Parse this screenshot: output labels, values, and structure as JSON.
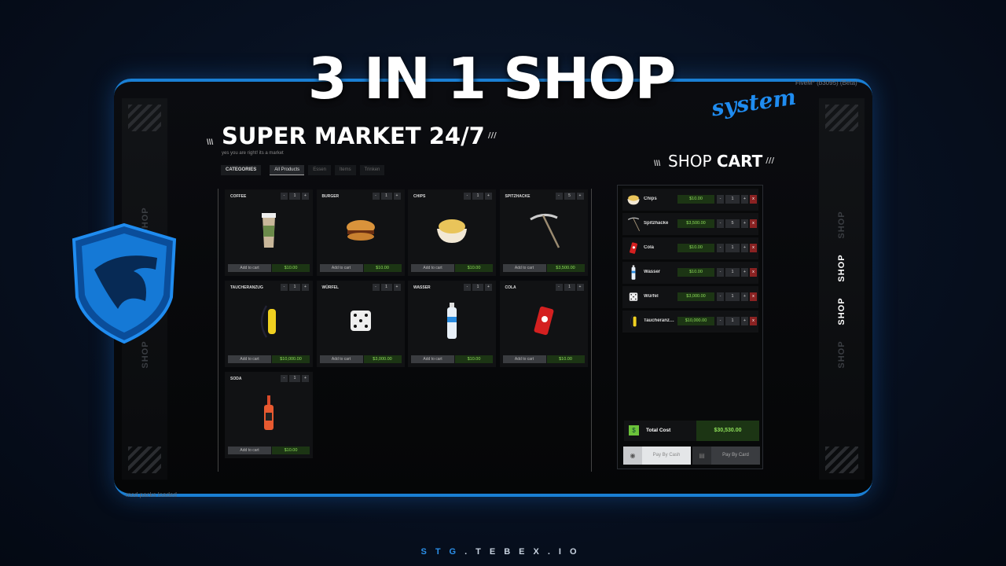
{
  "banner": {
    "title": "3 IN 1 SHOP",
    "script": "system",
    "footer_brand": "STG",
    "footer_rest": ".TEBEX.IO"
  },
  "overlay": {
    "fivem": "FiveM* (b3095) (Beta)",
    "mod_packs": "mod packs loaded"
  },
  "side_label": "SHOP",
  "shop": {
    "title": "SUPER MARKET 24/7",
    "subtitle": "yes you are right! its a market",
    "categories_label": "CATEGORIES",
    "tabs": [
      {
        "label": "All Products",
        "active": true
      },
      {
        "label": "Essen"
      },
      {
        "label": "Items"
      },
      {
        "label": "Trinken"
      }
    ],
    "add_label": "Add to cart",
    "products": [
      {
        "name": "COFFEE",
        "qty": "1",
        "price": "$10.00",
        "icon": "coffee-cup"
      },
      {
        "name": "BURGER",
        "qty": "1",
        "price": "$10.00",
        "icon": "burger"
      },
      {
        "name": "CHIPS",
        "qty": "1",
        "price": "$10.00",
        "icon": "chips-bowl"
      },
      {
        "name": "SPITZHACKE",
        "qty": "5",
        "price": "$3,500.00",
        "icon": "pickaxe"
      },
      {
        "name": "TAUCHERANZUG",
        "qty": "1",
        "price": "$10,000.00",
        "icon": "diving-tank"
      },
      {
        "name": "WÜRFEL",
        "qty": "1",
        "price": "$3,000.00",
        "icon": "dice"
      },
      {
        "name": "WASSER",
        "qty": "1",
        "price": "$10.00",
        "icon": "water-bottle"
      },
      {
        "name": "COLA",
        "qty": "1",
        "price": "$10.00",
        "icon": "cola-can"
      },
      {
        "name": "SODA",
        "qty": "1",
        "price": "$10.00",
        "icon": "soda-bottle"
      }
    ]
  },
  "cart": {
    "title_a": "SHOP",
    "title_b": "CART",
    "items": [
      {
        "name": "Chips",
        "price": "$10.00",
        "qty": "1",
        "icon": "chips-bowl"
      },
      {
        "name": "Spitzhacke",
        "price": "$3,500.00",
        "qty": "5",
        "icon": "pickaxe"
      },
      {
        "name": "Cola",
        "price": "$10.00",
        "qty": "1",
        "icon": "cola-can"
      },
      {
        "name": "Wasser",
        "price": "$10.00",
        "qty": "1",
        "icon": "water-bottle"
      },
      {
        "name": "Würfel",
        "price": "$3,000.00",
        "qty": "1",
        "icon": "dice"
      },
      {
        "name": "Taucheranzug",
        "price": "$10,000.00",
        "qty": "1",
        "icon": "diving-tank"
      }
    ],
    "total_label": "Total Cost",
    "total": "$30,530.00",
    "pay_cash": "Pay By Cash",
    "pay_card": "Pay By Card"
  },
  "colors": {
    "accent": "#1a7fd4",
    "price_bg": "#1c3514",
    "price_text": "#8fe05a",
    "remove": "#8a2222"
  }
}
